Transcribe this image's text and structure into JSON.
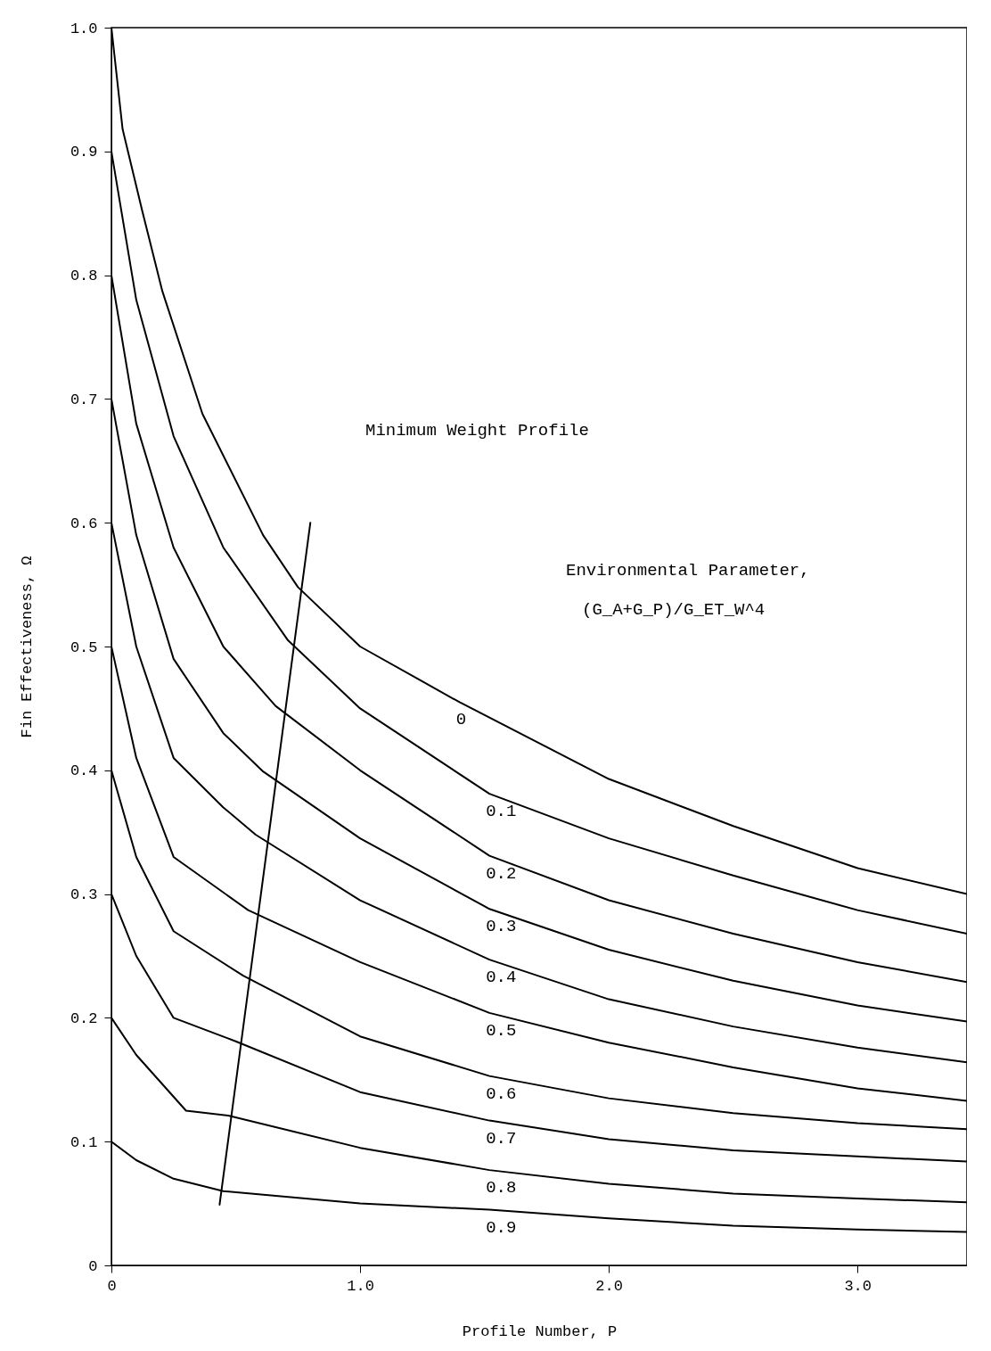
{
  "chart_data": {
    "type": "line",
    "xlabel": "Profile Number, P",
    "ylabel": "Fin Effectiveness, Ω",
    "xlim": [
      0,
      3.44
    ],
    "ylim": [
      0,
      1.0
    ],
    "xticks": [
      0,
      {
        "value": 1,
        "label": "1.0"
      },
      {
        "value": 2,
        "label": "2.0"
      },
      {
        "value": 3,
        "label": "3.0"
      }
    ],
    "yticks": [
      0,
      0.1,
      0.2,
      0.3,
      0.4,
      0.5,
      0.6,
      0.7,
      0.8,
      0.9,
      {
        "value": 1,
        "label": "1.0"
      }
    ],
    "grid": false,
    "marker": "none",
    "line_style": "solid",
    "series": [
      {
        "name": "0",
        "color": "#000000",
        "x": [
          0,
          0.045,
          0.124,
          0.205,
          0.366,
          0.61,
          0.75,
          1.0,
          1.4,
          2.0,
          2.5,
          3.0,
          3.44
        ],
        "values": [
          1.0,
          0.918,
          0.852,
          0.787,
          0.688,
          0.59,
          0.548,
          0.5,
          0.455,
          0.393,
          0.355,
          0.321,
          0.3
        ]
      },
      {
        "name": "0.1",
        "color": "#000000",
        "x": [
          0,
          0.1,
          0.25,
          0.45,
          0.71,
          1.0,
          1.52,
          2.0,
          2.5,
          3.0,
          3.44
        ],
        "values": [
          0.9,
          0.78,
          0.67,
          0.58,
          0.505,
          0.45,
          0.381,
          0.345,
          0.315,
          0.287,
          0.268
        ]
      },
      {
        "name": "0.2",
        "color": "#000000",
        "x": [
          0,
          0.1,
          0.25,
          0.45,
          0.66,
          1.0,
          1.52,
          2.0,
          2.5,
          3.0,
          3.44
        ],
        "values": [
          0.8,
          0.68,
          0.58,
          0.5,
          0.452,
          0.4,
          0.331,
          0.295,
          0.268,
          0.245,
          0.229
        ]
      },
      {
        "name": "0.3",
        "color": "#000000",
        "x": [
          0,
          0.1,
          0.25,
          0.45,
          0.61,
          1.0,
          1.52,
          2.0,
          2.5,
          3.0,
          3.44
        ],
        "values": [
          0.7,
          0.59,
          0.49,
          0.43,
          0.399,
          0.345,
          0.288,
          0.255,
          0.23,
          0.21,
          0.197
        ]
      },
      {
        "name": "0.4",
        "color": "#000000",
        "x": [
          0,
          0.1,
          0.25,
          0.45,
          0.58,
          1.0,
          1.52,
          2.0,
          2.5,
          3.0,
          3.44
        ],
        "values": [
          0.6,
          0.5,
          0.41,
          0.37,
          0.348,
          0.295,
          0.247,
          0.215,
          0.193,
          0.176,
          0.164
        ]
      },
      {
        "name": "0.5",
        "color": "#000000",
        "x": [
          0,
          0.1,
          0.25,
          0.55,
          1.0,
          1.52,
          2.0,
          2.5,
          3.0,
          3.44
        ],
        "values": [
          0.5,
          0.41,
          0.33,
          0.287,
          0.245,
          0.204,
          0.18,
          0.16,
          0.143,
          0.133
        ]
      },
      {
        "name": "0.6",
        "color": "#000000",
        "x": [
          0,
          0.1,
          0.25,
          0.53,
          1.0,
          1.52,
          2.0,
          2.5,
          3.0,
          3.44
        ],
        "values": [
          0.4,
          0.33,
          0.27,
          0.234,
          0.185,
          0.153,
          0.135,
          0.123,
          0.115,
          0.11
        ]
      },
      {
        "name": "0.7",
        "color": "#000000",
        "x": [
          0,
          0.1,
          0.25,
          0.5,
          1.0,
          1.52,
          2.0,
          2.5,
          3.0,
          3.44
        ],
        "values": [
          0.3,
          0.25,
          0.2,
          0.181,
          0.14,
          0.117,
          0.102,
          0.093,
          0.088,
          0.084
        ]
      },
      {
        "name": "0.8",
        "color": "#000000",
        "x": [
          0,
          0.1,
          0.3,
          0.47,
          1.0,
          1.52,
          2.0,
          2.5,
          3.0,
          3.44
        ],
        "values": [
          0.2,
          0.17,
          0.125,
          0.121,
          0.095,
          0.077,
          0.066,
          0.058,
          0.054,
          0.051
        ]
      },
      {
        "name": "0.9",
        "color": "#000000",
        "x": [
          0,
          0.1,
          0.25,
          0.45,
          1.0,
          1.52,
          2.0,
          2.5,
          3.0,
          3.44
        ],
        "values": [
          0.1,
          0.085,
          0.07,
          0.06,
          0.05,
          0.045,
          0.038,
          0.032,
          0.029,
          0.027
        ]
      },
      {
        "color": "#000000",
        "x": [
          0.435,
          0.8
        ],
        "values": [
          0.049,
          0.6
        ]
      }
    ],
    "annotations": [
      "Minimum Weight Profile",
      "Environmental Parameter,",
      "(G_A+G_P)/G_ET_W^4"
    ]
  }
}
